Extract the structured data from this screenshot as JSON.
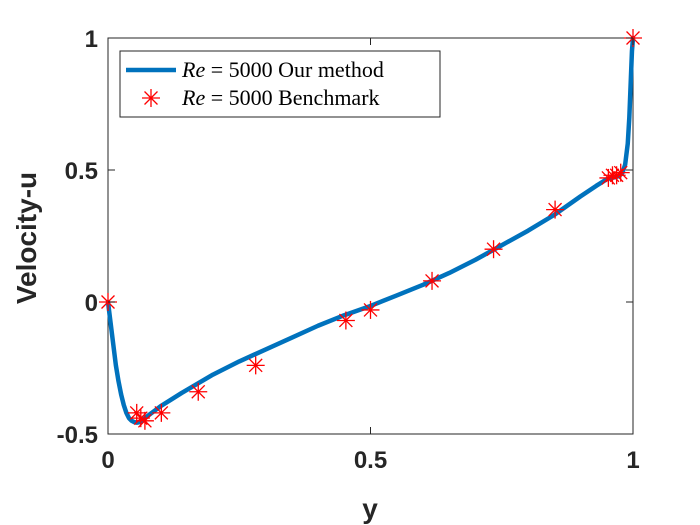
{
  "chart_data": {
    "type": "line",
    "title": "",
    "xlabel": "y",
    "ylabel": "Velocity-u",
    "xlim": [
      0,
      1
    ],
    "ylim": [
      -0.5,
      1
    ],
    "xticks": [
      0,
      0.5,
      1
    ],
    "xtick_labels": [
      "0",
      "0.5",
      "1"
    ],
    "yticks": [
      -0.5,
      0,
      0.5,
      1
    ],
    "ytick_labels": [
      "-0.5",
      "0",
      "0.5",
      "1"
    ],
    "grid": false,
    "legend_position": "top-left",
    "colors": {
      "line": "#0072BD",
      "marker": "#FF0000",
      "axes": "#262626"
    },
    "series": [
      {
        "name": "Our method",
        "legend_label": "Re = 5000 Our method",
        "legend_prefix": "Re",
        "legend_rest": " = 5000 Our method",
        "kind": "line",
        "x": [
          0,
          0.005,
          0.01,
          0.015,
          0.02,
          0.025,
          0.03,
          0.035,
          0.04,
          0.045,
          0.05,
          0.055,
          0.06,
          0.065,
          0.07,
          0.08,
          0.09,
          0.1,
          0.12,
          0.14,
          0.17,
          0.2,
          0.25,
          0.3,
          0.35,
          0.4,
          0.45,
          0.5,
          0.55,
          0.6,
          0.65,
          0.7,
          0.75,
          0.8,
          0.85,
          0.9,
          0.93,
          0.95,
          0.96,
          0.97,
          0.975,
          0.98,
          0.985,
          0.99,
          0.993,
          0.996,
          0.998,
          1.0
        ],
        "y": [
          0,
          -0.08,
          -0.16,
          -0.24,
          -0.3,
          -0.35,
          -0.39,
          -0.42,
          -0.44,
          -0.45,
          -0.455,
          -0.457,
          -0.455,
          -0.45,
          -0.44,
          -0.425,
          -0.41,
          -0.395,
          -0.37,
          -0.345,
          -0.31,
          -0.275,
          -0.225,
          -0.18,
          -0.135,
          -0.09,
          -0.05,
          -0.015,
          0.025,
          0.065,
          0.11,
          0.16,
          0.215,
          0.27,
          0.33,
          0.4,
          0.44,
          0.465,
          0.47,
          0.475,
          0.48,
          0.49,
          0.52,
          0.6,
          0.7,
          0.85,
          0.95,
          1.0
        ]
      },
      {
        "name": "Benchmark",
        "legend_label": "Re = 5000 Benchmark",
        "legend_prefix": "Re",
        "legend_rest": " = 5000 Benchmark",
        "kind": "scatter",
        "marker": "asterisk",
        "x": [
          0,
          0.0547,
          0.0625,
          0.0703,
          0.1016,
          0.1719,
          0.2813,
          0.4531,
          0.5,
          0.6172,
          0.7344,
          0.8516,
          0.9531,
          0.9609,
          0.9688,
          0.9766,
          1.0
        ],
        "y": [
          0,
          -0.42,
          -0.44,
          -0.45,
          -0.42,
          -0.34,
          -0.24,
          -0.07,
          -0.03,
          0.08,
          0.2,
          0.35,
          0.47,
          0.48,
          0.48,
          0.49,
          1.0
        ]
      }
    ]
  }
}
